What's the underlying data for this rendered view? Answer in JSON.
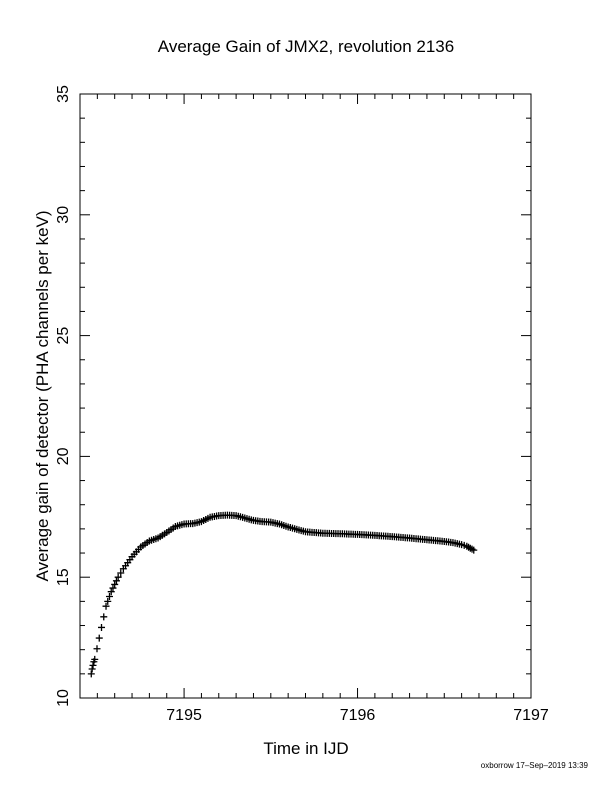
{
  "chart_data": {
    "type": "scatter",
    "title": "Average Gain of JMX2, revolution 2136",
    "xlabel": "Time in IJD",
    "ylabel": "Average gain of detector (PHA channels per keV)",
    "xlim": [
      7194.4,
      7197
    ],
    "ylim": [
      10,
      35
    ],
    "xticks": [
      7195,
      7196,
      7197
    ],
    "yticks": [
      10,
      15,
      20,
      25,
      30,
      35
    ],
    "xtick_labels": [
      "7195",
      "7196",
      "7197"
    ],
    "ytick_labels": [
      "10",
      "15",
      "20",
      "25",
      "30",
      "35"
    ],
    "grid": false,
    "marker": "+",
    "series": [
      {
        "x": [
          7194.465,
          7194.47,
          7194.475,
          7194.48,
          7194.485,
          7194.55,
          7194.56,
          7194.57,
          7194.58,
          7194.6,
          7194.62,
          7194.65,
          7194.7,
          7194.75,
          7194.8,
          7194.85,
          7194.9,
          7194.95,
          7195.0,
          7195.05,
          7195.1,
          7195.15,
          7195.2,
          7195.25,
          7195.3,
          7195.35,
          7195.4,
          7195.45,
          7195.5,
          7195.55,
          7195.6,
          7195.65,
          7195.7,
          7195.75,
          7195.8,
          7195.9,
          7196.0,
          7196.1,
          7196.2,
          7196.3,
          7196.4,
          7196.5,
          7196.55,
          7196.6,
          7196.63,
          7196.65,
          7196.67
        ],
        "y": [
          11.0,
          11.2,
          11.35,
          11.5,
          11.6,
          13.8,
          14.0,
          14.2,
          14.4,
          14.7,
          15.0,
          15.35,
          15.85,
          16.25,
          16.5,
          16.62,
          16.85,
          17.1,
          17.2,
          17.22,
          17.3,
          17.48,
          17.55,
          17.57,
          17.55,
          17.45,
          17.35,
          17.3,
          17.28,
          17.2,
          17.08,
          16.98,
          16.88,
          16.85,
          16.82,
          16.8,
          16.77,
          16.73,
          16.68,
          16.62,
          16.55,
          16.48,
          16.43,
          16.35,
          16.28,
          16.2,
          16.12
        ]
      }
    ]
  },
  "footer": {
    "note": "oxborrow 17–Sep–2019 13:39"
  }
}
